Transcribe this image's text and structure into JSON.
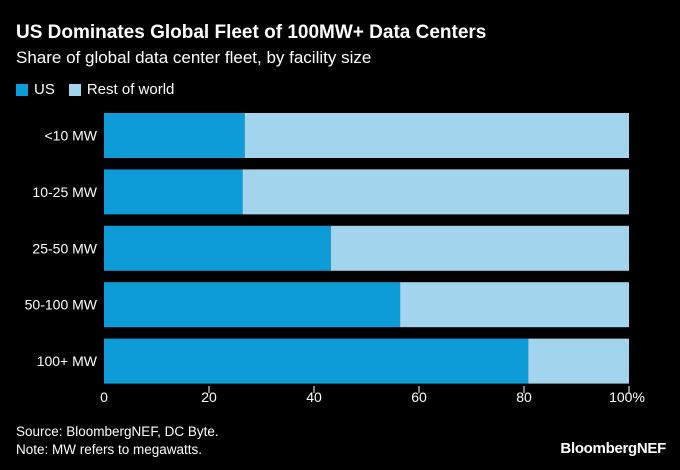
{
  "chart_data": {
    "type": "bar",
    "orientation": "horizontal",
    "stacked": true,
    "title": "US Dominates Global Fleet of 100MW+ Data Centers",
    "subtitle": "Share of global data center fleet, by facility size",
    "categories": [
      "<10 MW",
      "10-25 MW",
      "25-50 MW",
      "50-100 MW",
      "100+ MW"
    ],
    "series": [
      {
        "name": "US",
        "color": "#0e9cd9",
        "values": [
          26.8,
          26.4,
          43.2,
          56.4,
          80.8
        ]
      },
      {
        "name": "Rest of world",
        "color": "#a3d4ed",
        "values": [
          73.2,
          73.6,
          56.8,
          43.6,
          19.2
        ]
      }
    ],
    "xlim": [
      0,
      100
    ],
    "x_ticks": [
      "0",
      "20",
      "40",
      "60",
      "80",
      "100%"
    ],
    "grid": false,
    "legend_position": "top-left"
  },
  "footer": {
    "source": "Source: BloombergNEF, DC Byte.",
    "note": "Note: MW refers to megawatts.",
    "brand": "BloombergNEF"
  }
}
